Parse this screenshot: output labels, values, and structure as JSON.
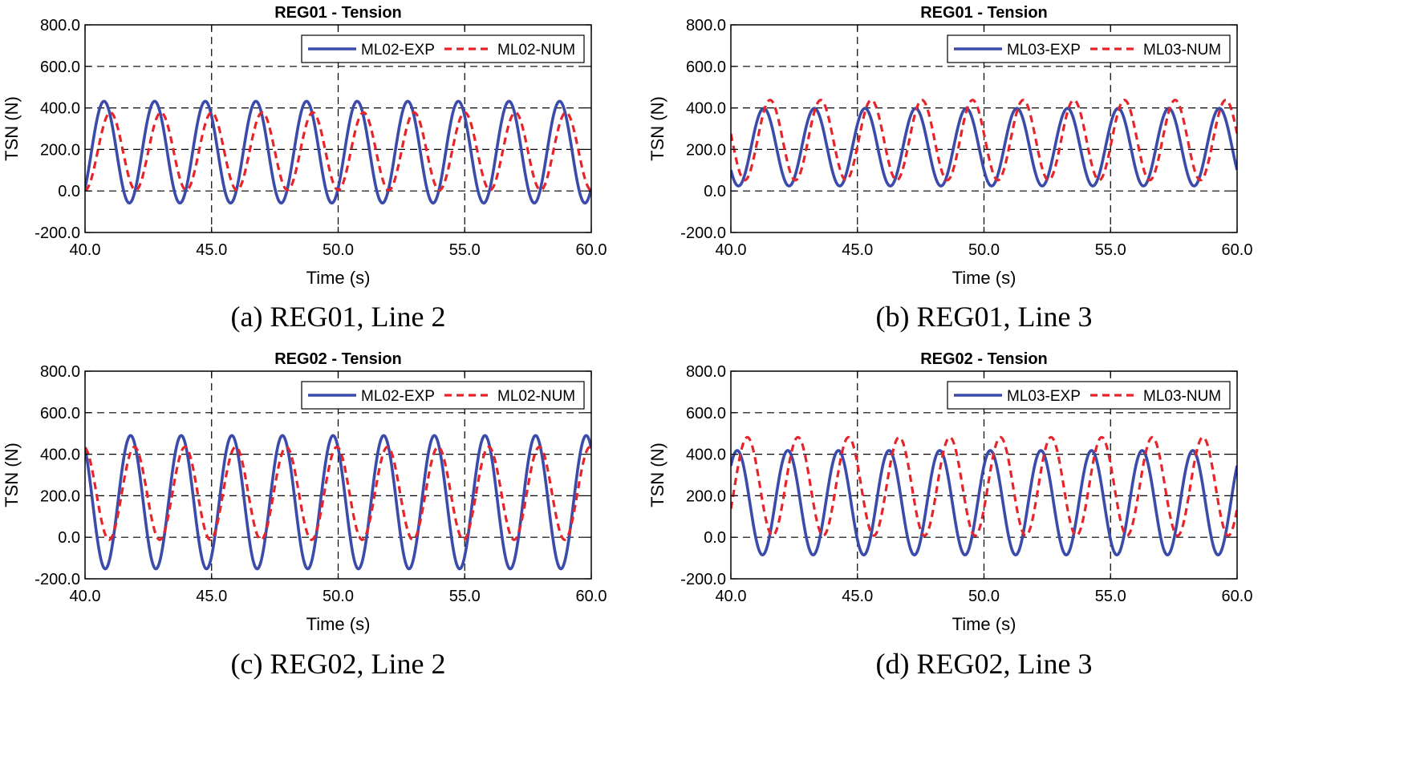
{
  "figure": {
    "panels": [
      {
        "caption": "(a) REG01, Line 2"
      },
      {
        "caption": "(b) REG01, Line 3"
      },
      {
        "caption": "(c) REG02, Line 2"
      },
      {
        "caption": "(d) REG02, Line 3"
      }
    ]
  },
  "chart_data": [
    {
      "type": "line",
      "title": "REG01 - Tension",
      "xlabel": "Time (s)",
      "ylabel": "TSN (N)",
      "xlim": [
        40,
        60
      ],
      "ylim": [
        -200,
        800
      ],
      "xticks": [
        40,
        45,
        50,
        55,
        60
      ],
      "xtick_labels": [
        "40.0",
        "45.0",
        "50.0",
        "55.0",
        "60.0"
      ],
      "yticks": [
        -200,
        0,
        200,
        400,
        600,
        800
      ],
      "ytick_labels": [
        "-200.0",
        "0.0",
        "200.0",
        "400.0",
        "600.0",
        "800.0"
      ],
      "grid": true,
      "legend": "top-right",
      "period": 2.0,
      "series": [
        {
          "name": "ML02-EXP",
          "style": "solid",
          "color": "#3a4bab",
          "phase_peak_time": 40.75,
          "max": 432,
          "min": -58
        },
        {
          "name": "ML02-NUM",
          "style": "dashed",
          "color": "#e8242b",
          "phase_peak_time": 41.0,
          "max": 378,
          "min": 4
        }
      ]
    },
    {
      "type": "line",
      "title": "REG01 - Tension",
      "xlabel": "Time (s)",
      "ylabel": "TSN (N)",
      "xlim": [
        40,
        60
      ],
      "ylim": [
        -200,
        800
      ],
      "xticks": [
        40,
        45,
        50,
        55,
        60
      ],
      "xtick_labels": [
        "40.0",
        "45.0",
        "50.0",
        "55.0",
        "60.0"
      ],
      "yticks": [
        -200,
        0,
        200,
        400,
        600,
        800
      ],
      "ytick_labels": [
        "-200.0",
        "0.0",
        "200.0",
        "400.0",
        "600.0",
        "800.0"
      ],
      "grid": true,
      "legend": "top-right",
      "period": 2.0,
      "series": [
        {
          "name": "ML03-EXP",
          "style": "solid",
          "color": "#3a4bab",
          "phase_peak_time": 41.3,
          "max": 398,
          "min": 24
        },
        {
          "name": "ML03-NUM",
          "style": "dashed",
          "color": "#e8242b",
          "phase_peak_time": 41.55,
          "max": 438,
          "min": 52
        }
      ]
    },
    {
      "type": "line",
      "title": "REG02 - Tension",
      "xlabel": "Time (s)",
      "ylabel": "TSN (N)",
      "xlim": [
        40,
        60
      ],
      "ylim": [
        -200,
        800
      ],
      "xticks": [
        40,
        45,
        50,
        55,
        60
      ],
      "xtick_labels": [
        "40.0",
        "45.0",
        "50.0",
        "55.0",
        "60.0"
      ],
      "yticks": [
        -200,
        0,
        200,
        400,
        600,
        800
      ],
      "ytick_labels": [
        "-200.0",
        "0.0",
        "200.0",
        "400.0",
        "600.0",
        "800.0"
      ],
      "grid": true,
      "legend": "top-right",
      "period": 2.0,
      "series": [
        {
          "name": "ML02-EXP",
          "style": "solid",
          "color": "#3a4bab",
          "phase_peak_time": 41.8,
          "max": 490,
          "min": -152
        },
        {
          "name": "ML02-NUM",
          "style": "dashed",
          "color": "#e8242b",
          "phase_peak_time": 41.95,
          "max": 435,
          "min": -12
        }
      ]
    },
    {
      "type": "line",
      "title": "REG02 - Tension",
      "xlabel": "Time (s)",
      "ylabel": "TSN (N)",
      "xlim": [
        40,
        60
      ],
      "ylim": [
        -200,
        800
      ],
      "xticks": [
        40,
        45,
        50,
        55,
        60
      ],
      "xtick_labels": [
        "40.0",
        "45.0",
        "50.0",
        "55.0",
        "60.0"
      ],
      "yticks": [
        -200,
        0,
        200,
        400,
        600,
        800
      ],
      "ytick_labels": [
        "-200.0",
        "0.0",
        "200.0",
        "400.0",
        "600.0",
        "800.0"
      ],
      "grid": true,
      "legend": "top-right",
      "period": 2.0,
      "series": [
        {
          "name": "ML03-EXP",
          "style": "solid",
          "color": "#3a4bab",
          "phase_peak_time": 40.25,
          "max": 418,
          "min": -85
        },
        {
          "name": "ML03-NUM",
          "style": "dashed",
          "color": "#e8242b",
          "phase_peak_time": 40.65,
          "max": 482,
          "min": 8
        }
      ]
    }
  ]
}
